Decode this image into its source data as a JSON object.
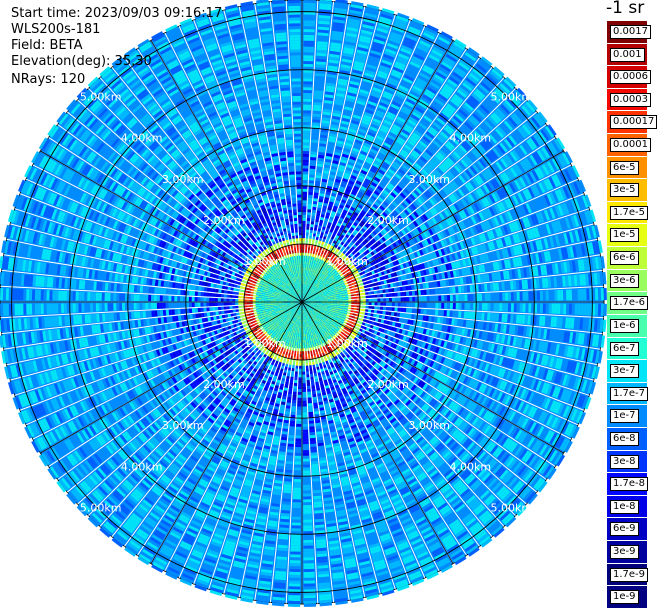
{
  "info": {
    "start_time": "Start time: 2023/09/03 09:16:17",
    "instrument": "WLS200s-181",
    "field": "Field: BETA",
    "elevation": "Elevation(deg): 35.30",
    "nrays": "NRays: 120"
  },
  "colorbar": {
    "unit_title": "-1 sr",
    "levels": [
      {
        "label": "0.0017",
        "color": "#7f0000"
      },
      {
        "label": "0.001",
        "color": "#b30000"
      },
      {
        "label": "0.0006",
        "color": "#d40000"
      },
      {
        "label": "0.0003",
        "color": "#f50800"
      },
      {
        "label": "0.00017",
        "color": "#ff3300"
      },
      {
        "label": "0.0001",
        "color": "#ff6200"
      },
      {
        "label": "6e-5",
        "color": "#ff9000"
      },
      {
        "label": "3e-5",
        "color": "#ffbd00"
      },
      {
        "label": "1.7e-5",
        "color": "#ffe800"
      },
      {
        "label": "1e-5",
        "color": "#e6ff12"
      },
      {
        "label": "6e-6",
        "color": "#bfff38"
      },
      {
        "label": "3e-6",
        "color": "#98ff5f"
      },
      {
        "label": "1.7e-6",
        "color": "#70ff87"
      },
      {
        "label": "1e-6",
        "color": "#49ffae"
      },
      {
        "label": "6e-7",
        "color": "#22ffd5"
      },
      {
        "label": "3e-7",
        "color": "#00e4f8"
      },
      {
        "label": "1.7e-7",
        "color": "#00b8ff"
      },
      {
        "label": "1e-7",
        "color": "#008cff"
      },
      {
        "label": "6e-8",
        "color": "#0060ff"
      },
      {
        "label": "3e-8",
        "color": "#0034ff"
      },
      {
        "label": "1.7e-8",
        "color": "#0008ff"
      },
      {
        "label": "1e-8",
        "color": "#0000e8"
      },
      {
        "label": "6e-9",
        "color": "#0000c4"
      },
      {
        "label": "3e-9",
        "color": "#00009f"
      },
      {
        "label": "1.7e-9",
        "color": "#00007a"
      },
      {
        "label": "1e-9",
        "color": "#000080"
      }
    ]
  },
  "chart_data": {
    "type": "heatmap",
    "projection": "polar (PPI scan)",
    "n_rays": 120,
    "range_rings_km": [
      1,
      2,
      3,
      4,
      5
    ],
    "range_labels": [
      "1.00km",
      "2.00km",
      "3.00km",
      "4.00km",
      "5.00km"
    ],
    "label_directions_deg": [
      45,
      135,
      225,
      315
    ],
    "max_range_km": 5.2,
    "spokes": 12,
    "features": {
      "near_field_cyan_radius_km": 0.85,
      "high_beta_ring_radius_km": [
        0.85,
        1.0
      ],
      "background_beta": "6e-8 to 3e-7"
    }
  }
}
